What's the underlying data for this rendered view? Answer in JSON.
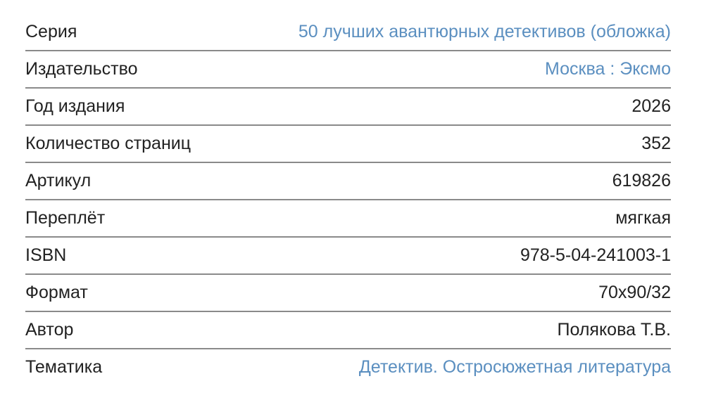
{
  "link_color": "#5b8fc0",
  "rows": [
    {
      "label": "Серия",
      "value": "50 лучших авантюрных детективов (обложка)",
      "link": true
    },
    {
      "label": "Издательство",
      "value": "Москва : Эксмо",
      "link": true
    },
    {
      "label": "Год издания",
      "value": "2026",
      "link": false
    },
    {
      "label": "Количество страниц",
      "value": "352",
      "link": false
    },
    {
      "label": "Артикул",
      "value": "619826",
      "link": false
    },
    {
      "label": "Переплёт",
      "value": "мягкая",
      "link": false
    },
    {
      "label": "ISBN",
      "value": "978-5-04-241003-1",
      "link": false
    },
    {
      "label": "Формат",
      "value": "70x90/32",
      "link": false
    },
    {
      "label": "Автор",
      "value": "Полякова Т.В.",
      "link": false
    },
    {
      "label": "Тематика",
      "value": "Детектив. Остросюжетная литература",
      "link": true
    }
  ]
}
